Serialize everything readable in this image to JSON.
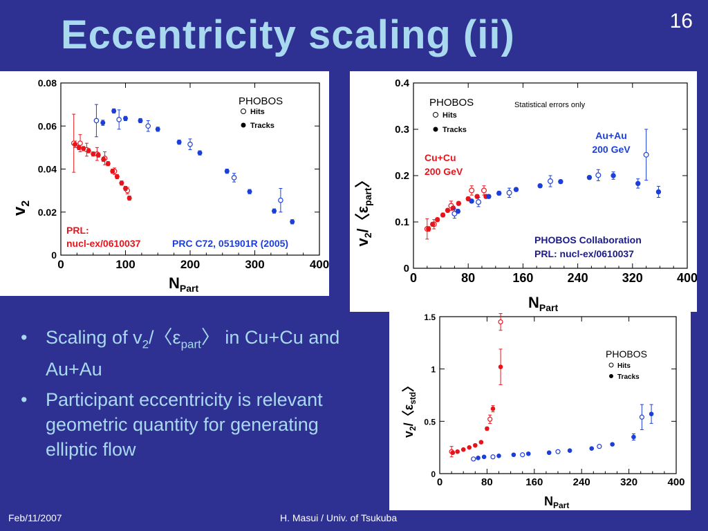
{
  "slide": {
    "title": "Eccentricity scaling (ii)",
    "page_number": "16",
    "footer_date": "Feb/11/2007",
    "footer_author": "H. Masui / Univ. of Tsukuba"
  },
  "bullets": [
    {
      "pre": "Scaling of v",
      "sub1": "2",
      "mid": "/〈ε",
      "sub2": "part",
      "post": "〉 in Cu+Cu and Au+Au"
    },
    {
      "text": "Participant eccentricity is relevant geometric quantity for generating elliptic flow"
    }
  ],
  "colors": {
    "background": "#2E3192",
    "title": "#A9D9EF",
    "cu": "#E8141B",
    "au": "#1C3FD8",
    "navy": "#1A1A8C"
  },
  "chart_data": [
    {
      "id": "v2",
      "type": "scatter",
      "xlim": [
        0,
        400
      ],
      "ylim": [
        0,
        0.08
      ],
      "xticks": [
        "0",
        "100",
        "200",
        "300",
        "400"
      ],
      "yticks": [
        "0",
        "0.02",
        "0.04",
        "0.06",
        "0.08"
      ],
      "ytick_values": [
        0,
        0.02,
        0.04,
        0.06,
        0.08
      ],
      "xlabel": "N",
      "xlabel_sub": "Part",
      "ylabel": "v",
      "ylabel_sub": "2",
      "legend": {
        "title": "PHOBOS",
        "hits": "Hits",
        "tracks": "Tracks"
      },
      "annotations": {
        "cu_ref1": "PRL:",
        "cu_ref2": "nucl-ex/0610037",
        "au_ref": "PRC C72, 051901R (2005)"
      },
      "series": [
        {
          "species": "cu",
          "marker": "open",
          "points": [
            [
              20,
              0.052,
              0.0135
            ],
            [
              30,
              0.052,
              0.004
            ],
            [
              40,
              0.049,
              0.003
            ],
            [
              56,
              0.047,
              0.003
            ],
            [
              68,
              0.045,
              0.003
            ],
            [
              83,
              0.039,
              0.0015
            ],
            [
              103,
              0.03,
              0.0015
            ]
          ]
        },
        {
          "species": "cu",
          "marker": "filled",
          "points": [
            [
              22,
              0.0515,
              0.0015
            ],
            [
              28,
              0.05,
              0.001
            ],
            [
              35,
              0.0495,
              0.001
            ],
            [
              43,
              0.0485,
              0.001
            ],
            [
              50,
              0.047,
              0.001
            ],
            [
              58,
              0.0465,
              0.001
            ],
            [
              66,
              0.0445,
              0.001
            ],
            [
              73,
              0.0425,
              0.001
            ],
            [
              80,
              0.039,
              0.001
            ],
            [
              87,
              0.0365,
              0.001
            ],
            [
              94,
              0.0335,
              0.001
            ],
            [
              100,
              0.031,
              0.001
            ],
            [
              106,
              0.0265,
              0.001
            ]
          ]
        },
        {
          "species": "au",
          "marker": "open",
          "points": [
            [
              55,
              0.0625,
              0.0075
            ],
            [
              90,
              0.063,
              0.0045
            ],
            [
              135,
              0.06,
              0.0025
            ],
            [
              200,
              0.0515,
              0.0025
            ],
            [
              268,
              0.036,
              0.002
            ],
            [
              340,
              0.0255,
              0.0055
            ]
          ]
        },
        {
          "species": "au",
          "marker": "filled",
          "points": [
            [
              65,
              0.0615,
              0.0012
            ],
            [
              82,
              0.067,
              0.001
            ],
            [
              100,
              0.0635,
              0.001
            ],
            [
              123,
              0.0625,
              0.001
            ],
            [
              150,
              0.0585,
              0.001
            ],
            [
              183,
              0.0525,
              0.001
            ],
            [
              215,
              0.0475,
              0.001
            ],
            [
              257,
              0.039,
              0.001
            ],
            [
              292,
              0.0295,
              0.001
            ],
            [
              330,
              0.0205,
              0.001
            ],
            [
              358,
              0.0155,
              0.001
            ]
          ]
        }
      ]
    },
    {
      "id": "v2_epart",
      "type": "scatter",
      "xlim": [
        0,
        400
      ],
      "ylim": [
        0,
        0.4
      ],
      "xticks": [
        "0",
        "80",
        "160",
        "240",
        "320",
        "400"
      ],
      "yticks": [
        "0",
        "0.1",
        "0.2",
        "0.3",
        "0.4"
      ],
      "ytick_values": [
        0,
        0.1,
        0.2,
        0.3,
        0.4
      ],
      "xlabel": "N",
      "xlabel_sub": "Part",
      "ylabel": "v",
      "ylabel_sub": "2",
      "ylabel_mid": "/〈ε",
      "ylabel_sub2": "part",
      "ylabel_end": "〉",
      "legend": {
        "title": "PHOBOS",
        "hits": "Hits",
        "tracks": "Tracks"
      },
      "annotations": {
        "stat": "Statistical errors only",
        "au1": "Au+Au",
        "au2": "200 GeV",
        "cu1": "Cu+Cu",
        "cu2": "200 GeV",
        "collab1": "PHOBOS Collaboration",
        "collab2": "PRL: nucl-ex/0610037"
      },
      "series": [
        {
          "species": "cu",
          "marker": "open",
          "points": [
            [
              20,
              0.085,
              0.022
            ],
            [
              30,
              0.095,
              0.01
            ],
            [
              55,
              0.135,
              0.01
            ],
            [
              85,
              0.168,
              0.01
            ],
            [
              103,
              0.168,
              0.01
            ]
          ]
        },
        {
          "species": "cu",
          "marker": "filled",
          "points": [
            [
              22,
              0.085,
              0.005
            ],
            [
              28,
              0.095,
              0.004
            ],
            [
              35,
              0.105,
              0.004
            ],
            [
              43,
              0.115,
              0.004
            ],
            [
              50,
              0.125,
              0.004
            ],
            [
              58,
              0.13,
              0.004
            ],
            [
              66,
              0.14,
              0.004
            ],
            [
              80,
              0.15,
              0.004
            ],
            [
              93,
              0.155,
              0.004
            ],
            [
              106,
              0.155,
              0.004
            ]
          ]
        },
        {
          "species": "au",
          "marker": "open",
          "points": [
            [
              60,
              0.118,
              0.01
            ],
            [
              95,
              0.143,
              0.01
            ],
            [
              140,
              0.163,
              0.01
            ],
            [
              200,
              0.188,
              0.012
            ],
            [
              270,
              0.201,
              0.012
            ],
            [
              340,
              0.245,
              0.055
            ]
          ]
        },
        {
          "species": "au",
          "marker": "filled",
          "points": [
            [
              65,
              0.123,
              0.004
            ],
            [
              85,
              0.145,
              0.004
            ],
            [
              110,
              0.155,
              0.004
            ],
            [
              125,
              0.162,
              0.004
            ],
            [
              150,
              0.17,
              0.004
            ],
            [
              185,
              0.178,
              0.004
            ],
            [
              215,
              0.187,
              0.004
            ],
            [
              257,
              0.196,
              0.004
            ],
            [
              292,
              0.2,
              0.008
            ],
            [
              328,
              0.183,
              0.01
            ],
            [
              358,
              0.165,
              0.012
            ]
          ]
        }
      ]
    },
    {
      "id": "v2_estd",
      "type": "scatter",
      "xlim": [
        0,
        400
      ],
      "ylim": [
        0,
        1.5
      ],
      "xticks": [
        "0",
        "80",
        "160",
        "240",
        "320",
        "400"
      ],
      "yticks": [
        "0",
        "0.5",
        "1",
        "1.5"
      ],
      "ytick_values": [
        0,
        0.5,
        1,
        1.5
      ],
      "xlabel": "N",
      "xlabel_sub": "Part",
      "ylabel": "v",
      "ylabel_sub": "2",
      "ylabel_mid": "/〈ε",
      "ylabel_sub2": "std",
      "ylabel_end": "〉",
      "legend": {
        "title": "PHOBOS",
        "hits": "Hits",
        "tracks": "Tracks"
      },
      "series": [
        {
          "species": "cu",
          "marker": "open",
          "points": [
            [
              20,
              0.21,
              0.05
            ],
            [
              85,
              0.52,
              0.04
            ],
            [
              103,
              1.45,
              0.08
            ]
          ]
        },
        {
          "species": "cu",
          "marker": "filled",
          "points": [
            [
              22,
              0.2,
              0.01
            ],
            [
              30,
              0.21,
              0.01
            ],
            [
              40,
              0.23,
              0.01
            ],
            [
              50,
              0.25,
              0.01
            ],
            [
              60,
              0.27,
              0.01
            ],
            [
              70,
              0.3,
              0.01
            ],
            [
              80,
              0.43,
              0.015
            ],
            [
              90,
              0.62,
              0.03
            ],
            [
              103,
              1.02,
              0.17
            ]
          ]
        },
        {
          "species": "au",
          "marker": "open",
          "points": [
            [
              57,
              0.14,
              0.01
            ],
            [
              90,
              0.16,
              0.01
            ],
            [
              140,
              0.18,
              0.01
            ],
            [
              200,
              0.21,
              0.01
            ],
            [
              270,
              0.26,
              0.015
            ],
            [
              342,
              0.54,
              0.12
            ]
          ]
        },
        {
          "species": "au",
          "marker": "filled",
          "points": [
            [
              65,
              0.15,
              0.01
            ],
            [
              75,
              0.16,
              0.01
            ],
            [
              100,
              0.17,
              0.01
            ],
            [
              125,
              0.18,
              0.01
            ],
            [
              150,
              0.19,
              0.01
            ],
            [
              185,
              0.2,
              0.01
            ],
            [
              220,
              0.22,
              0.01
            ],
            [
              257,
              0.24,
              0.01
            ],
            [
              292,
              0.28,
              0.01
            ],
            [
              328,
              0.35,
              0.03
            ],
            [
              358,
              0.57,
              0.09
            ]
          ]
        }
      ]
    }
  ]
}
